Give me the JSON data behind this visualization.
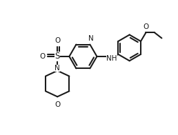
{
  "background_color": "#ffffff",
  "line_color": "#1a1a1a",
  "line_width": 1.5,
  "figsize": [
    2.58,
    1.96
  ],
  "dpi": 100,
  "font_size": 7.5,
  "xlim": [
    -2.0,
    2.4
  ],
  "ylim": [
    -1.8,
    1.6
  ]
}
